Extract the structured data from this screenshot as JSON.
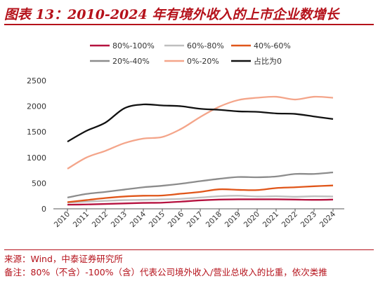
{
  "title": "图表 13：2010-2024 年有境外收入的上市企业数增长",
  "source": "来源：Wind，中泰证券研究所",
  "remark": "备注：80%（不含）-100%（含）代表公司境外收入/营业总收入的比重，依次类推",
  "chart_data": {
    "type": "line",
    "x": [
      "2010",
      "2011",
      "2012",
      "2013",
      "2014",
      "2015",
      "2016",
      "2017",
      "2018",
      "2019",
      "2020",
      "2021",
      "2022",
      "2023",
      "2024"
    ],
    "ylim": [
      0,
      2500
    ],
    "yticks": [
      "0",
      "500",
      "1000",
      "1500",
      "2000",
      "2500"
    ],
    "grid": false,
    "legend_position": "top",
    "series": [
      {
        "name": "80%-100%",
        "color": "#b5123f",
        "values": [
          80,
          85,
          95,
          105,
          115,
          120,
          140,
          165,
          180,
          185,
          185,
          185,
          180,
          175,
          180
        ]
      },
      {
        "name": "60%-80%",
        "color": "#bfbfbf",
        "values": [
          120,
          140,
          155,
          170,
          175,
          185,
          195,
          220,
          245,
          255,
          240,
          245,
          235,
          245,
          240
        ]
      },
      {
        "name": "40%-60%",
        "color": "#e0561a",
        "values": [
          130,
          170,
          210,
          240,
          255,
          260,
          295,
          330,
          380,
          370,
          365,
          405,
          420,
          440,
          455
        ]
      },
      {
        "name": "20%-40%",
        "color": "#8c8c8c",
        "values": [
          220,
          290,
          330,
          375,
          420,
          450,
          490,
          540,
          585,
          620,
          615,
          630,
          680,
          680,
          710
        ]
      },
      {
        "name": "0%-20%",
        "color": "#f4a58a",
        "values": [
          780,
          1000,
          1130,
          1280,
          1370,
          1400,
          1560,
          1790,
          1990,
          2120,
          2165,
          2185,
          2130,
          2185,
          2165
        ]
      },
      {
        "name": "占比为0",
        "color": "#111111",
        "values": [
          1310,
          1520,
          1680,
          1960,
          2035,
          2015,
          2000,
          1950,
          1930,
          1900,
          1890,
          1860,
          1850,
          1800,
          1750
        ]
      }
    ]
  }
}
